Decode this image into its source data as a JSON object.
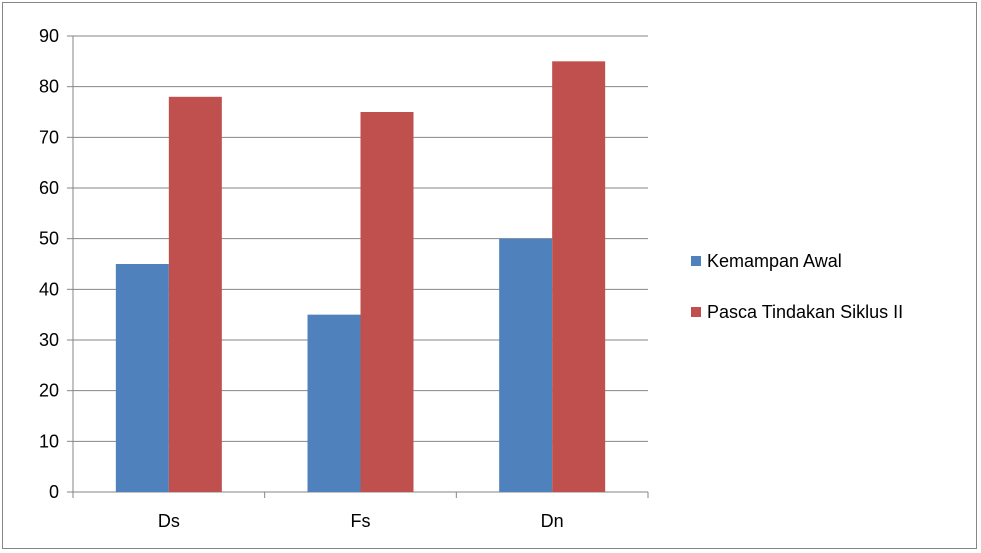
{
  "chart_data": {
    "type": "bar",
    "categories": [
      "Ds",
      "Fs",
      "Dn"
    ],
    "series": [
      {
        "name": "Kemampan Awal",
        "values": [
          45,
          35,
          50
        ],
        "color": "#4F81BD"
      },
      {
        "name": "Pasca Tindakan Siklus II",
        "values": [
          78,
          75,
          85
        ],
        "color": "#C0504D"
      }
    ],
    "ylim": [
      0,
      90
    ],
    "yticks": [
      0,
      10,
      20,
      30,
      40,
      50,
      60,
      70,
      80,
      90
    ],
    "grid": true,
    "legend": "right"
  }
}
